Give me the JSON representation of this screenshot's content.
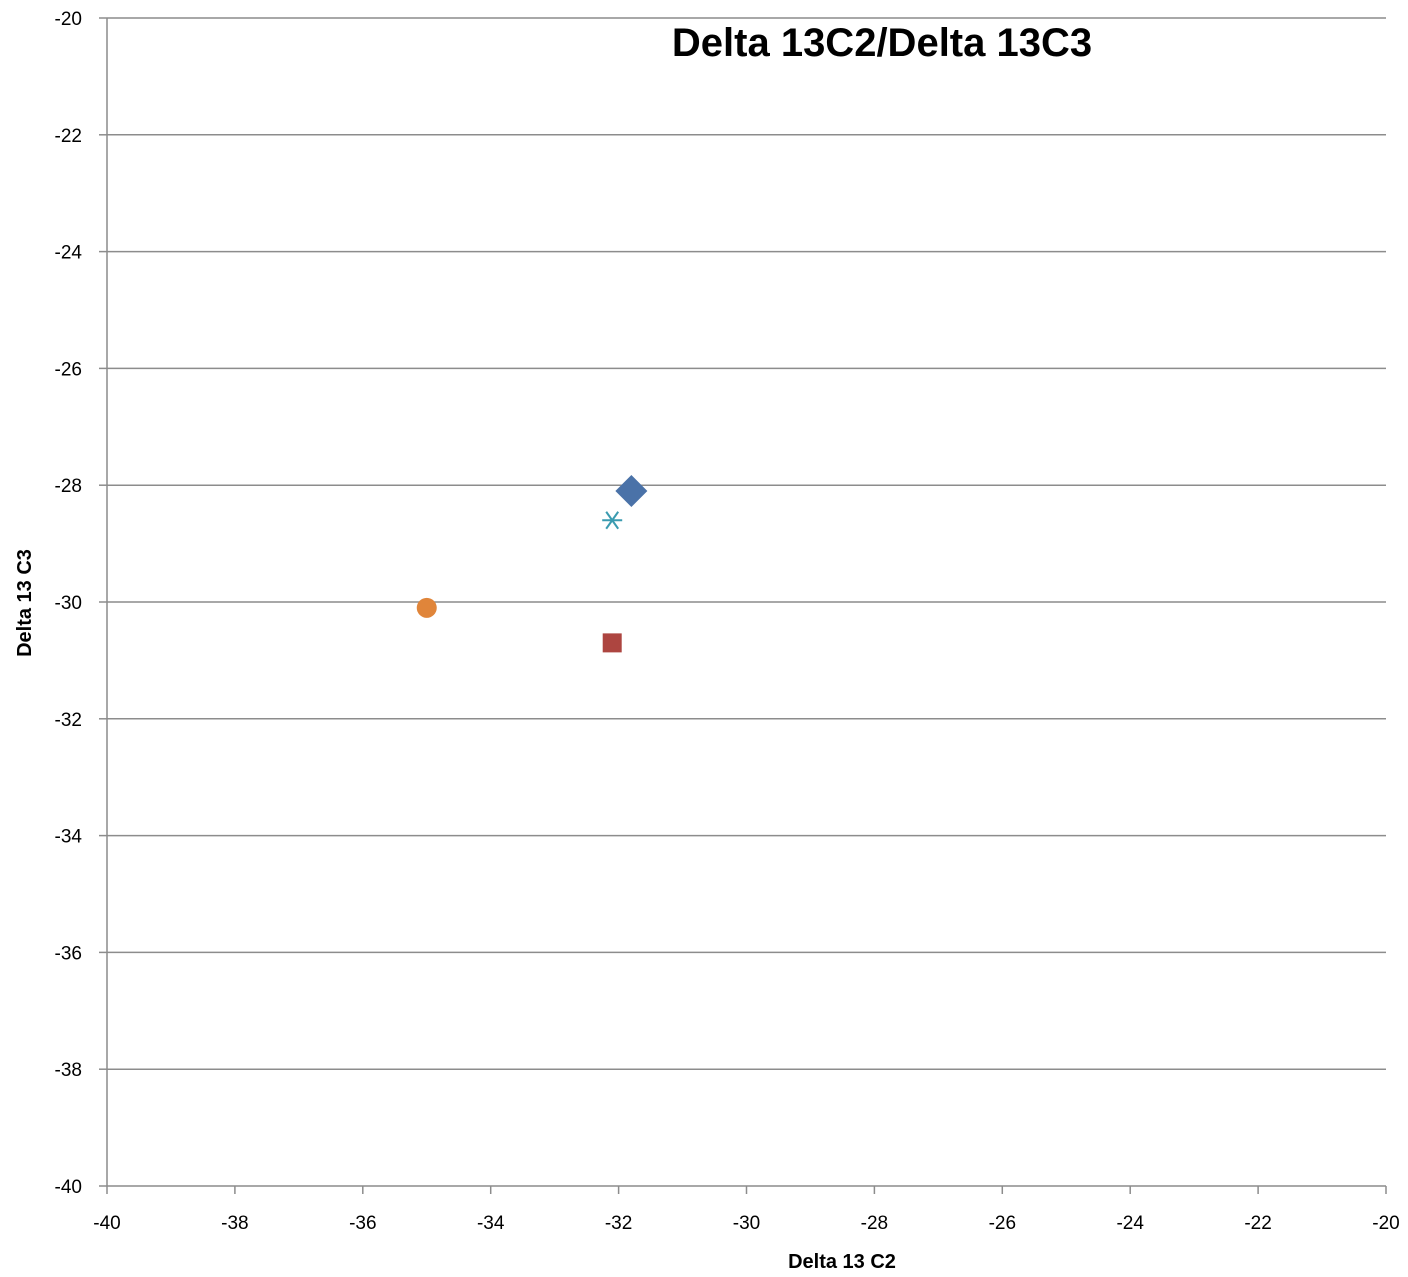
{
  "chart_data": {
    "type": "scatter",
    "title": "Delta 13C2/Delta 13C3",
    "xlabel": "Delta 13 C2",
    "ylabel": "Delta 13 C3",
    "xlim": [
      -40,
      -20
    ],
    "ylim": [
      -40,
      -20
    ],
    "xticks": [
      -40,
      -38,
      -36,
      -34,
      -32,
      -30,
      -28,
      -26,
      -24,
      -22,
      -20
    ],
    "yticks": [
      -40,
      -38,
      -36,
      -34,
      -32,
      -30,
      -28,
      -26,
      -24,
      -22,
      -20
    ],
    "grid": "horizontal",
    "legend": "none",
    "series": [
      {
        "x": -31.8,
        "y": -28.1,
        "marker": "diamond",
        "color": "#4a72a8"
      },
      {
        "x": -32.1,
        "y": -30.7,
        "marker": "square",
        "color": "#ad4540"
      },
      {
        "x": -35.0,
        "y": -30.1,
        "marker": "circle",
        "color": "#e0853a"
      },
      {
        "x": -32.1,
        "y": -28.6,
        "marker": "asterisk",
        "color": "#3a9bb0"
      }
    ]
  }
}
